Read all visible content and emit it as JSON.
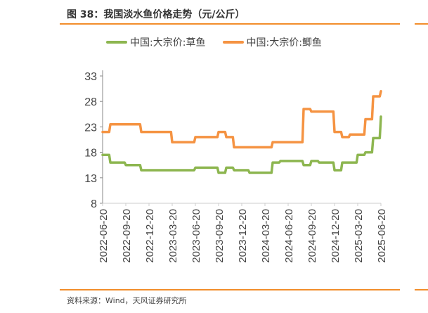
{
  "header": {
    "title": "图 38：我国淡水鱼价格走势（元/公斤）"
  },
  "footer": {
    "source": "资料来源：Wind，天风证券研究所"
  },
  "colors": {
    "green": "#8db650",
    "orange": "#f59342",
    "accent_rule": "#f28e2b"
  },
  "chart_data": {
    "type": "line",
    "title": "我国淡水鱼价格走势（元/公斤）",
    "xlabel": "",
    "ylabel": "元/公斤",
    "ylim": [
      8,
      33
    ],
    "yticks": [
      8,
      13,
      18,
      23,
      28,
      33
    ],
    "xticks": [
      "2022-06-20",
      "2022-09-20",
      "2022-12-20",
      "2023-03-20",
      "2023-06-20",
      "2023-09-20",
      "2023-12-20",
      "2024-03-20",
      "2024-06-20",
      "2024-09-20",
      "2024-12-20",
      "2025-03-20",
      "2025-06-20"
    ],
    "legend_position": "top",
    "grid": false,
    "x": [
      "2022-06",
      "2022-07",
      "2022-08",
      "2022-09",
      "2022-10",
      "2022-11",
      "2022-12",
      "2023-01",
      "2023-02",
      "2023-03",
      "2023-04",
      "2023-05",
      "2023-06",
      "2023-07",
      "2023-08",
      "2023-09",
      "2023-10",
      "2023-11",
      "2023-12",
      "2024-01",
      "2024-02",
      "2024-03",
      "2024-04",
      "2024-05",
      "2024-06",
      "2024-07",
      "2024-08",
      "2024-09",
      "2024-10",
      "2024-11",
      "2024-12",
      "2025-01",
      "2025-02",
      "2025-03",
      "2025-04",
      "2025-05",
      "2025-06"
    ],
    "series": [
      {
        "name": "中国:大宗价:草鱼",
        "color": "#8db650",
        "values": [
          17.5,
          16,
          16,
          15.5,
          15.5,
          14.5,
          14.5,
          14.5,
          14.5,
          14.5,
          14.5,
          14.5,
          15,
          15,
          15,
          14,
          15,
          14.5,
          14.5,
          14,
          14,
          14,
          16,
          16.3,
          16.3,
          16.3,
          15.5,
          16.3,
          16,
          16,
          14.5,
          16,
          16,
          17.5,
          18,
          20.8,
          25
        ]
      },
      {
        "name": "中国:大宗价:鲫鱼",
        "color": "#f59342",
        "values": [
          22,
          23.5,
          23.5,
          23.5,
          23.5,
          22,
          22,
          22,
          22,
          20,
          20,
          20,
          21,
          21,
          21,
          22,
          21,
          19,
          19,
          19,
          19,
          19,
          20,
          20,
          20,
          20,
          26.5,
          26,
          26,
          26,
          22,
          21,
          21.5,
          21.5,
          24.5,
          29,
          30
        ]
      }
    ]
  }
}
